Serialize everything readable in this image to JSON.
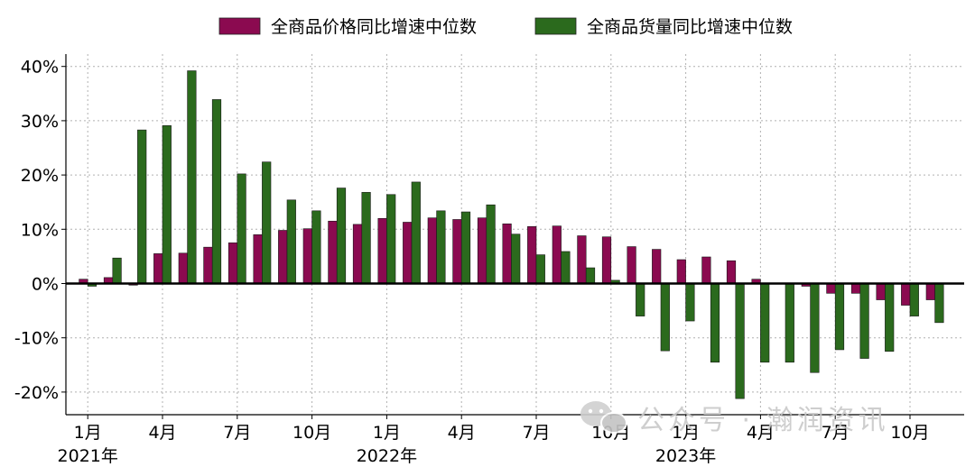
{
  "chart_data": {
    "type": "bar",
    "categories": [
      "2021-01",
      "2021-02",
      "2021-03",
      "2021-04",
      "2021-05",
      "2021-06",
      "2021-07",
      "2021-08",
      "2021-09",
      "2021-10",
      "2021-11",
      "2021-12",
      "2022-01",
      "2022-02",
      "2022-03",
      "2022-04",
      "2022-05",
      "2022-06",
      "2022-07",
      "2022-08",
      "2022-09",
      "2022-10",
      "2022-11",
      "2022-12",
      "2023-01",
      "2023-02",
      "2023-03",
      "2023-04",
      "2023-05",
      "2023-06",
      "2023-07",
      "2023-08",
      "2023-09",
      "2023-10",
      "2023-11"
    ],
    "series": [
      {
        "name": "全商品价格同比增速中位数",
        "color": "#8b0a50",
        "values": [
          0.8,
          1.1,
          -0.3,
          5.5,
          5.6,
          6.7,
          7.5,
          9.0,
          9.8,
          10.1,
          11.5,
          10.9,
          12.0,
          11.3,
          12.1,
          11.8,
          12.1,
          11.0,
          10.5,
          10.6,
          8.8,
          8.6,
          6.8,
          6.3,
          4.4,
          4.9,
          4.2,
          0.8,
          -0.1,
          -0.5,
          -1.8,
          -1.8,
          -3.0,
          -4.0,
          -3.0
        ]
      },
      {
        "name": "全商品货量同比增速中位数",
        "color": "#2b6a1d",
        "values": [
          -0.5,
          4.7,
          28.3,
          29.1,
          39.2,
          33.9,
          20.2,
          22.4,
          15.4,
          13.4,
          17.6,
          16.8,
          16.4,
          18.7,
          13.4,
          13.2,
          14.5,
          9.1,
          5.3,
          5.9,
          2.9,
          0.6,
          -6.0,
          -12.4,
          -6.9,
          -14.5,
          -21.2,
          -14.5,
          -14.5,
          -16.4,
          -12.2,
          -13.8,
          -12.5,
          -6.0,
          -7.2
        ]
      }
    ],
    "y_ticks": [
      "40%",
      "30%",
      "20%",
      "10%",
      "0%",
      "-10%",
      "-20%"
    ],
    "y_tick_values": [
      40,
      30,
      20,
      10,
      0,
      -10,
      -20
    ],
    "ylim": [
      -24,
      42
    ],
    "x_tick_labels": [
      {
        "index": 0,
        "label": "1月",
        "year": "2021年"
      },
      {
        "index": 3,
        "label": "4月"
      },
      {
        "index": 6,
        "label": "7月"
      },
      {
        "index": 9,
        "label": "10月"
      },
      {
        "index": 12,
        "label": "1月",
        "year": "2022年"
      },
      {
        "index": 15,
        "label": "4月"
      },
      {
        "index": 18,
        "label": "7月"
      },
      {
        "index": 21,
        "label": "10月"
      },
      {
        "index": 24,
        "label": "1月",
        "year": "2023年"
      },
      {
        "index": 27,
        "label": "4月"
      },
      {
        "index": 30,
        "label": "7月"
      },
      {
        "index": 33,
        "label": "10月"
      }
    ],
    "grid": true,
    "legend_position": "top-center"
  },
  "watermark": {
    "text": "公众号 · 瀚润资讯",
    "icon": "wechat-icon"
  }
}
